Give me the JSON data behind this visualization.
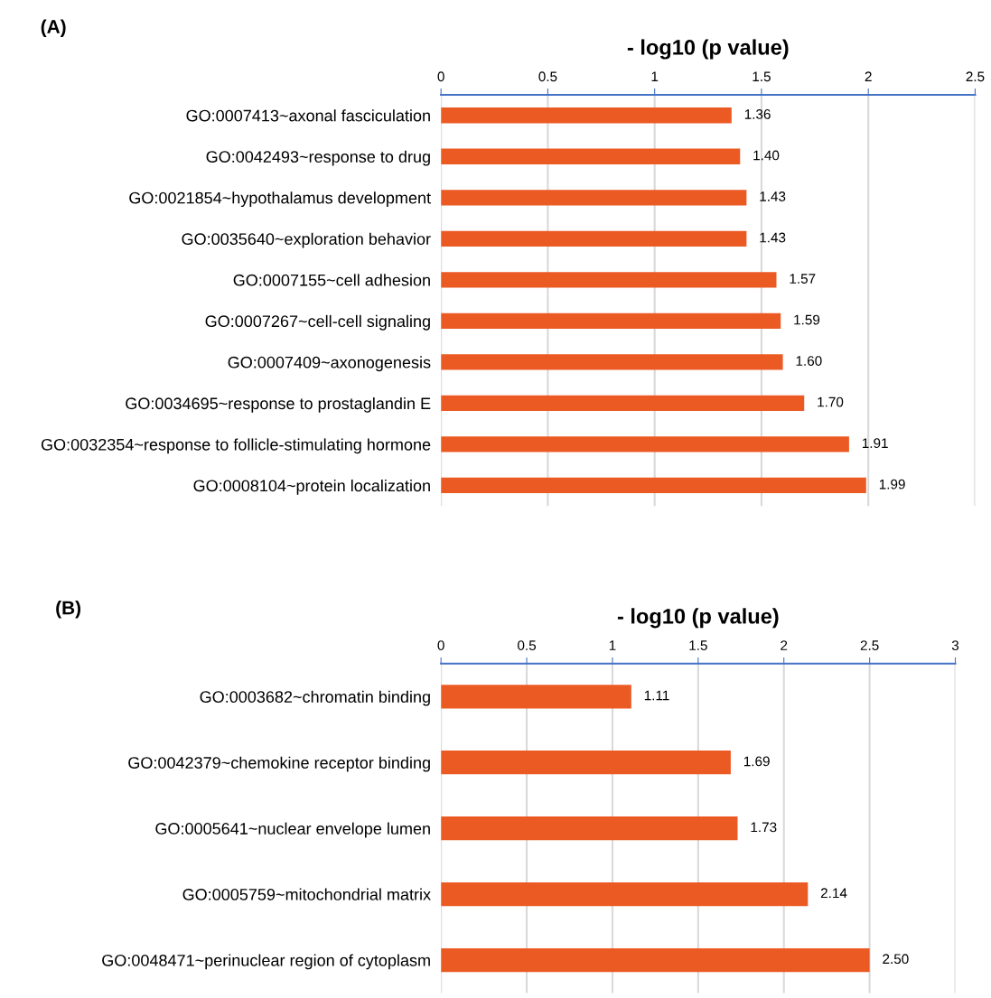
{
  "chart_data": [
    {
      "type": "bar",
      "orientation": "horizontal",
      "title": "- log10 (p value)",
      "annotations": [
        "(A)"
      ],
      "categories": [
        "GO:0007413~axonal fasciculation",
        "GO:0042493~response to drug",
        "GO:0021854~hypothalamus development",
        "GO:0035640~exploration behavior",
        "GO:0007155~cell adhesion",
        "GO:0007267~cell-cell signaling",
        "GO:0007409~axonogenesis",
        "GO:0034695~response to prostaglandin E",
        "GO:0032354~response to follicle-stimulating hormone",
        "GO:0008104~protein localization"
      ],
      "values": [
        1.36,
        1.4,
        1.43,
        1.43,
        1.57,
        1.59,
        1.6,
        1.7,
        1.91,
        1.99
      ],
      "value_labels": [
        "1.36",
        "1.40",
        "1.43",
        "1.43",
        "1.57",
        "1.59",
        "1.60",
        "1.70",
        "1.91",
        "1.99"
      ],
      "color": "#ec5a24",
      "xlim": [
        0,
        2.5
      ],
      "xticks": [
        0,
        0.5,
        1,
        1.5,
        2,
        2.5
      ],
      "grid": "x"
    },
    {
      "type": "bar",
      "orientation": "horizontal",
      "title": "- log10 (p value)",
      "annotations": [
        "(B)"
      ],
      "categories": [
        "GO:0003682~chromatin binding",
        "GO:0042379~chemokine receptor binding",
        "GO:0005641~nuclear envelope lumen",
        "GO:0005759~mitochondrial matrix",
        "GO:0048471~perinuclear region of cytoplasm"
      ],
      "values": [
        1.11,
        1.69,
        1.73,
        2.14,
        2.5
      ],
      "value_labels": [
        "1.11",
        "1.69",
        "1.73",
        "2.14",
        "2.50"
      ],
      "color": "#ec5a24",
      "xlim": [
        0,
        3
      ],
      "xticks": [
        0,
        0.5,
        1,
        1.5,
        2,
        2.5,
        3
      ],
      "grid": "x"
    }
  ]
}
